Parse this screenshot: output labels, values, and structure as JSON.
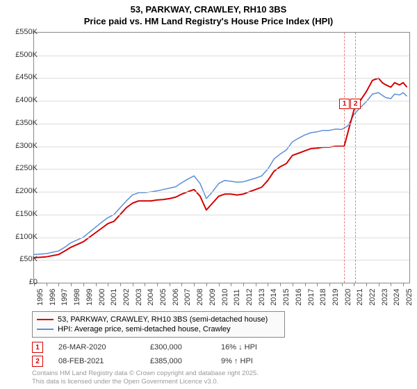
{
  "title_line1": "53, PARKWAY, CRAWLEY, RH10 3BS",
  "title_line2": "Price paid vs. HM Land Registry's House Price Index (HPI)",
  "chart": {
    "type": "line",
    "background_color": "#ffffff",
    "grid_color": "#dddddd",
    "border_color": "#888888",
    "ylim": [
      0,
      550000
    ],
    "ytick_step": 50000,
    "yticks": [
      "£0",
      "£50K",
      "£100K",
      "£150K",
      "£200K",
      "£250K",
      "£300K",
      "£350K",
      "£400K",
      "£450K",
      "£500K",
      "£550K"
    ],
    "xlim": [
      1995,
      2025.5
    ],
    "xticks": [
      1995,
      1996,
      1997,
      1998,
      1999,
      2000,
      2001,
      2002,
      2003,
      2004,
      2005,
      2006,
      2007,
      2008,
      2009,
      2010,
      2011,
      2012,
      2013,
      2014,
      2015,
      2016,
      2017,
      2018,
      2019,
      2020,
      2021,
      2022,
      2023,
      2024,
      2025
    ],
    "title_fontsize": 13,
    "label_fontsize": 11,
    "series": [
      {
        "name": "53, PARKWAY, CRAWLEY, RH10 3BS (semi-detached house)",
        "color": "#d40000",
        "line_width": 2,
        "points": [
          [
            1995,
            55000
          ],
          [
            1996,
            57000
          ],
          [
            1997,
            62000
          ],
          [
            1997.5,
            70000
          ],
          [
            1998,
            78000
          ],
          [
            1999,
            90000
          ],
          [
            2000,
            110000
          ],
          [
            2000.5,
            120000
          ],
          [
            2001,
            130000
          ],
          [
            2001.5,
            135000
          ],
          [
            2002,
            150000
          ],
          [
            2002.5,
            165000
          ],
          [
            2003,
            175000
          ],
          [
            2003.5,
            180000
          ],
          [
            2004,
            180000
          ],
          [
            2004.5,
            180000
          ],
          [
            2005,
            182000
          ],
          [
            2005.5,
            183000
          ],
          [
            2006,
            185000
          ],
          [
            2006.5,
            188000
          ],
          [
            2007,
            195000
          ],
          [
            2007.5,
            200000
          ],
          [
            2008,
            205000
          ],
          [
            2008.5,
            190000
          ],
          [
            2009,
            160000
          ],
          [
            2009.5,
            175000
          ],
          [
            2010,
            190000
          ],
          [
            2010.5,
            195000
          ],
          [
            2011,
            195000
          ],
          [
            2011.5,
            193000
          ],
          [
            2012,
            195000
          ],
          [
            2012.5,
            200000
          ],
          [
            2013,
            205000
          ],
          [
            2013.5,
            210000
          ],
          [
            2014,
            225000
          ],
          [
            2014.5,
            245000
          ],
          [
            2015,
            255000
          ],
          [
            2015.5,
            262000
          ],
          [
            2016,
            280000
          ],
          [
            2016.5,
            285000
          ],
          [
            2017,
            290000
          ],
          [
            2017.5,
            295000
          ],
          [
            2018,
            296000
          ],
          [
            2018.5,
            298000
          ],
          [
            2019,
            298000
          ],
          [
            2019.5,
            300000
          ],
          [
            2020,
            300000
          ],
          [
            2020.2,
            300000
          ],
          [
            2021,
            380000
          ],
          [
            2021.1,
            385000
          ],
          [
            2021.5,
            400000
          ],
          [
            2022,
            420000
          ],
          [
            2022.5,
            445000
          ],
          [
            2023,
            450000
          ],
          [
            2023.3,
            440000
          ],
          [
            2023.6,
            435000
          ],
          [
            2024,
            430000
          ],
          [
            2024.3,
            440000
          ],
          [
            2024.7,
            435000
          ],
          [
            2025,
            440000
          ],
          [
            2025.3,
            430000
          ]
        ]
      },
      {
        "name": "HPI: Average price, semi-detached house, Crawley",
        "color": "#5b8fd6",
        "line_width": 1.5,
        "points": [
          [
            1995,
            62000
          ],
          [
            1996,
            64000
          ],
          [
            1997,
            70000
          ],
          [
            1997.5,
            78000
          ],
          [
            1998,
            88000
          ],
          [
            1999,
            100000
          ],
          [
            2000,
            122000
          ],
          [
            2000.5,
            133000
          ],
          [
            2001,
            143000
          ],
          [
            2001.5,
            150000
          ],
          [
            2002,
            165000
          ],
          [
            2002.5,
            180000
          ],
          [
            2003,
            193000
          ],
          [
            2003.5,
            198000
          ],
          [
            2004,
            198000
          ],
          [
            2004.5,
            200000
          ],
          [
            2005,
            202000
          ],
          [
            2005.5,
            205000
          ],
          [
            2006,
            208000
          ],
          [
            2006.5,
            211000
          ],
          [
            2007,
            220000
          ],
          [
            2007.5,
            228000
          ],
          [
            2008,
            235000
          ],
          [
            2008.5,
            218000
          ],
          [
            2009,
            185000
          ],
          [
            2009.5,
            200000
          ],
          [
            2010,
            218000
          ],
          [
            2010.5,
            225000
          ],
          [
            2011,
            223000
          ],
          [
            2011.5,
            221000
          ],
          [
            2012,
            222000
          ],
          [
            2012.5,
            226000
          ],
          [
            2013,
            230000
          ],
          [
            2013.5,
            235000
          ],
          [
            2014,
            250000
          ],
          [
            2014.5,
            272000
          ],
          [
            2015,
            283000
          ],
          [
            2015.5,
            292000
          ],
          [
            2016,
            310000
          ],
          [
            2016.5,
            318000
          ],
          [
            2017,
            325000
          ],
          [
            2017.5,
            330000
          ],
          [
            2018,
            332000
          ],
          [
            2018.5,
            335000
          ],
          [
            2019,
            335000
          ],
          [
            2019.5,
            338000
          ],
          [
            2020,
            337000
          ],
          [
            2020.5,
            345000
          ],
          [
            2021,
            370000
          ],
          [
            2021.5,
            385000
          ],
          [
            2022,
            398000
          ],
          [
            2022.5,
            415000
          ],
          [
            2023,
            418000
          ],
          [
            2023.3,
            412000
          ],
          [
            2023.6,
            407000
          ],
          [
            2024,
            405000
          ],
          [
            2024.3,
            415000
          ],
          [
            2024.7,
            413000
          ],
          [
            2025,
            418000
          ],
          [
            2025.3,
            410000
          ]
        ]
      }
    ],
    "markers": [
      {
        "id": "1",
        "x": 2020.2,
        "y_offset": -18
      },
      {
        "id": "2",
        "x": 2021.1,
        "y_offset": -18
      }
    ]
  },
  "legend": {
    "items": [
      {
        "color": "#d40000",
        "line_width": 2,
        "label": "53, PARKWAY, CRAWLEY, RH10 3BS (semi-detached house)"
      },
      {
        "color": "#5b8fd6",
        "line_width": 1.5,
        "label": "HPI: Average price, semi-detached house, Crawley"
      }
    ]
  },
  "sales": [
    {
      "marker": "1",
      "date": "26-MAR-2020",
      "price": "£300,000",
      "delta": "16% ↓ HPI"
    },
    {
      "marker": "2",
      "date": "08-FEB-2021",
      "price": "£385,000",
      "delta": "9% ↑ HPI"
    }
  ],
  "footer_line1": "Contains HM Land Registry data © Crown copyright and database right 2025.",
  "footer_line2": "This data is licensed under the Open Government Licence v3.0."
}
